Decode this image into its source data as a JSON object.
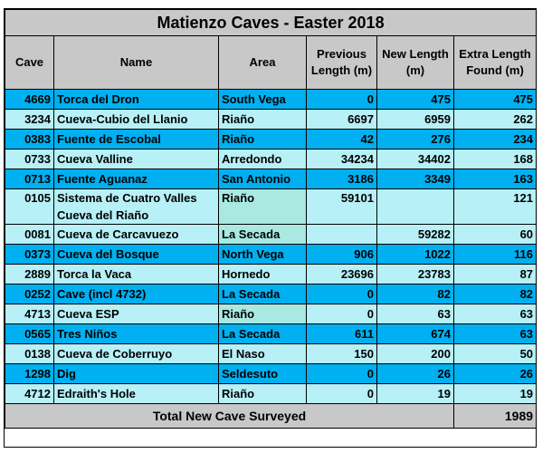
{
  "title": "Matienzo Caves - Easter 2018",
  "headers": {
    "cave": "Cave",
    "name": "Name",
    "area": "Area",
    "prev": "Previous Length (m)",
    "new": "New Length (m)",
    "extra": "Extra Length Found (m)"
  },
  "rows": [
    {
      "cave": "4669",
      "name": "Torca del Dron",
      "area": "South Vega",
      "prev": "0",
      "new": "475",
      "extra": "475"
    },
    {
      "cave": "3234",
      "name": "Cueva-Cubio del Llanio",
      "area": "Riaño",
      "prev": "6697",
      "new": "6959",
      "extra": "262"
    },
    {
      "cave": "0383",
      "name": "Fuente de Escobal",
      "area": "Riaño",
      "prev": "42",
      "new": "276",
      "extra": "234"
    },
    {
      "cave": "0733",
      "name": "Cueva Valline",
      "area": "Arredondo",
      "prev": "34234",
      "new": "34402",
      "extra": "168"
    },
    {
      "cave": "0713",
      "name": "Fuente Aguanaz",
      "area": "San Antonio",
      "prev": "3186",
      "new": "3349",
      "extra": "163"
    },
    {
      "cave": "0105",
      "name": "Sistema de Cuatro Valles Cueva del Riaño",
      "area": "Riaño",
      "prev": "59101",
      "new": "",
      "extra": "121"
    },
    {
      "cave": "0081",
      "name": "Cueva de Carcavuezo",
      "area": "La Secada",
      "prev": "",
      "new": "59282",
      "extra": "60"
    },
    {
      "cave": "0373",
      "name": "Cueva del Bosque",
      "area": "North Vega",
      "prev": "906",
      "new": "1022",
      "extra": "116"
    },
    {
      "cave": "2889",
      "name": "Torca la Vaca",
      "area": "Hornedo",
      "prev": "23696",
      "new": "23783",
      "extra": "87"
    },
    {
      "cave": "0252",
      "name": "Cave (incl 4732)",
      "area": "La Secada",
      "prev": "0",
      "new": "82",
      "extra": "82"
    },
    {
      "cave": "4713",
      "name": "Cueva ESP",
      "area": "Riaño",
      "prev": "0",
      "new": "63",
      "extra": "63"
    },
    {
      "cave": "0565",
      "name": "Tres Niños",
      "area": "La Secada",
      "prev": "611",
      "new": "674",
      "extra": "63"
    },
    {
      "cave": "0138",
      "name": "Cueva de Coberruyo",
      "area": "El Naso",
      "prev": "150",
      "new": "200",
      "extra": "50"
    },
    {
      "cave": "1298",
      "name": "Dig",
      "area": "Seldesuto",
      "prev": "0",
      "new": "26",
      "extra": "26"
    },
    {
      "cave": "4712",
      "name": "Edraith's Hole",
      "area": "Riaño",
      "prev": "0",
      "new": "19",
      "extra": "19"
    }
  ],
  "total": {
    "label": "Total New Cave Surveyed",
    "value": "1989"
  },
  "colors": {
    "dark_row": "#00b0f0",
    "light_row": "#b7f0f7",
    "header": "#c8c8c8"
  }
}
